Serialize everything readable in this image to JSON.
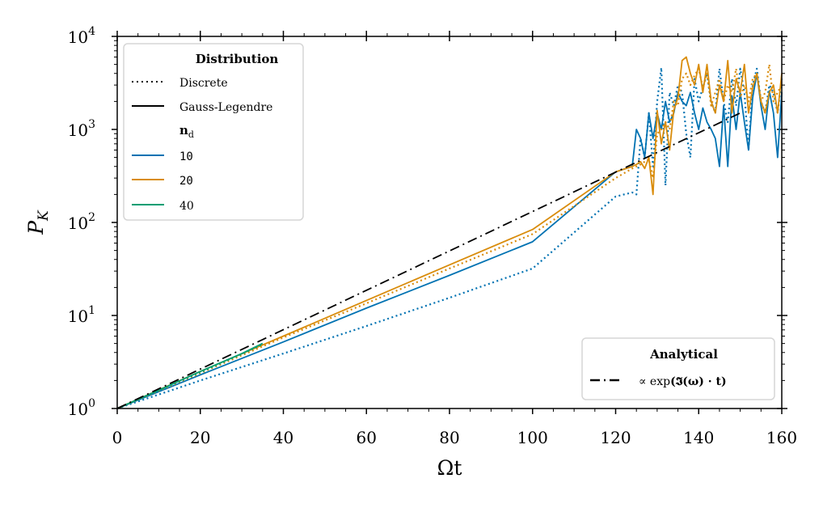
{
  "chart_data": {
    "type": "line",
    "xlabel": "Ωt",
    "ylabel": "P",
    "ylabel_sub": "K",
    "xlim": [
      0,
      160
    ],
    "ylim": [
      1,
      10000
    ],
    "yscale": "log",
    "xticks": [
      0,
      20,
      40,
      60,
      80,
      100,
      120,
      140,
      160
    ],
    "xtick_labels": [
      "0",
      "20",
      "40",
      "60",
      "80",
      "100",
      "120",
      "140",
      "160"
    ],
    "yticks": [
      {
        "base": "10",
        "exp": "0"
      },
      {
        "base": "10",
        "exp": "1"
      },
      {
        "base": "10",
        "exp": "2"
      },
      {
        "base": "10",
        "exp": "3"
      },
      {
        "base": "10",
        "exp": "4"
      }
    ],
    "colors": {
      "n10": "#0072b2",
      "n20": "#d98c0b",
      "n40": "#009e73",
      "analytical": "#000000"
    },
    "legend_distribution": {
      "title": "Distribution",
      "discrete": "Discrete",
      "gauss": "Gauss-Legendre",
      "nd_label": "n",
      "nd_sub": "d",
      "entries": [
        "10",
        "20",
        "40"
      ]
    },
    "legend_analytical": {
      "title": "Analytical",
      "prefix": "∝ exp",
      "expr": "(𝕴(ω) · t)"
    },
    "series": [
      {
        "name": "10 Gauss-Legendre",
        "color": "#0072b2",
        "dash": "solid",
        "x": [
          0,
          20,
          40,
          60,
          80,
          100,
          120,
          124,
          125,
          126,
          127,
          128,
          129,
          130,
          131,
          132,
          133,
          134,
          135,
          136,
          137,
          138,
          139,
          140,
          141,
          142,
          143,
          144,
          145,
          146,
          147,
          148,
          149,
          150,
          151,
          152,
          153,
          154,
          155,
          156,
          157,
          158,
          159,
          160
        ],
        "y": [
          1,
          2.3,
          5.2,
          12,
          27,
          62,
          350,
          400,
          1000,
          800,
          500,
          1500,
          800,
          1500,
          1000,
          2000,
          1200,
          1500,
          2500,
          2000,
          1800,
          2500,
          1500,
          1000,
          1700,
          1200,
          1000,
          800,
          400,
          1800,
          400,
          2300,
          1000,
          2500,
          1200,
          600,
          2200,
          4000,
          1800,
          1000,
          2600,
          1500,
          500,
          2500
        ]
      },
      {
        "name": "10 Discrete",
        "color": "#0072b2",
        "dash": "dotted",
        "x": [
          0,
          20,
          40,
          60,
          80,
          100,
          120,
          124,
          125,
          126,
          127,
          128,
          129,
          130,
          131,
          132,
          133,
          134,
          135,
          136,
          137,
          138,
          139,
          140,
          141,
          142,
          143,
          144,
          145,
          146,
          147,
          148,
          149,
          150,
          151,
          152,
          153,
          154,
          155,
          156,
          157,
          158,
          159,
          160
        ],
        "y": [
          1,
          2.0,
          3.9,
          7.7,
          15.5,
          32,
          190,
          210,
          200,
          800,
          500,
          1500,
          400,
          2000,
          4600,
          250,
          2500,
          1800,
          3000,
          2500,
          900,
          500,
          3500,
          2000,
          2800,
          4000,
          2000,
          1500,
          4500,
          2000,
          1200,
          3500,
          1800,
          4500,
          2500,
          600,
          3000,
          4500,
          2000,
          1500,
          3000,
          2500,
          1500,
          3500
        ]
      },
      {
        "name": "20 Gauss-Legendre",
        "color": "#d98c0b",
        "dash": "solid",
        "x": [
          0,
          20,
          40,
          60,
          80,
          100,
          120,
          124,
          125,
          126,
          127,
          128,
          129,
          130,
          131,
          132,
          133,
          134,
          135,
          136,
          137,
          138,
          139,
          140,
          141,
          142,
          143,
          144,
          145,
          146,
          147,
          148,
          149,
          150,
          151,
          152,
          153,
          154,
          155,
          156,
          157,
          158,
          159,
          160
        ],
        "y": [
          1,
          2.5,
          6,
          14.5,
          35,
          84,
          350,
          400,
          420,
          450,
          380,
          500,
          200,
          1600,
          700,
          1200,
          600,
          1600,
          2200,
          5500,
          6000,
          4000,
          3000,
          5000,
          2500,
          5000,
          2000,
          1500,
          3000,
          2000,
          5500,
          1500,
          3500,
          2500,
          5000,
          1500,
          2800,
          4000,
          2000,
          1500,
          2500,
          3000,
          1500,
          4000
        ]
      },
      {
        "name": "20 Discrete",
        "color": "#d98c0b",
        "dash": "dotted",
        "x": [
          0,
          20,
          40,
          60,
          80,
          100,
          120,
          124,
          125,
          126,
          127,
          128,
          129,
          130,
          131,
          132,
          133,
          134,
          135,
          136,
          137,
          138,
          139,
          140,
          141,
          142,
          143,
          144,
          145,
          146,
          147,
          148,
          149,
          150,
          151,
          152,
          153,
          154,
          155,
          156,
          157,
          158,
          159,
          160
        ],
        "y": [
          1,
          2.4,
          5.8,
          13.5,
          32,
          75,
          300,
          380,
          400,
          420,
          450,
          480,
          300,
          900,
          1000,
          1200,
          1000,
          2000,
          1800,
          3500,
          4000,
          3000,
          3800,
          4500,
          2800,
          4000,
          1800,
          2500,
          3500,
          2000,
          3000,
          2500,
          4500,
          2200,
          3000,
          2000,
          3500,
          4000,
          2000,
          2500,
          5000,
          2000,
          2500,
          3000
        ]
      },
      {
        "name": "40 Gauss-Legendre",
        "color": "#009e73",
        "dash": "solid",
        "x": [
          0,
          10,
          20,
          30,
          35
        ],
        "y": [
          1,
          1.57,
          2.5,
          3.9,
          5.0
        ]
      },
      {
        "name": "40 Discrete",
        "color": "#009e73",
        "dash": "dotted",
        "x": [
          0,
          10,
          20,
          30,
          35
        ],
        "y": [
          1,
          1.57,
          2.45,
          3.85,
          4.9
        ]
      },
      {
        "name": "Analytical",
        "color": "#000000",
        "dash": "dashdot",
        "x": [
          0,
          150
        ],
        "y": [
          1,
          1500
        ]
      }
    ]
  }
}
